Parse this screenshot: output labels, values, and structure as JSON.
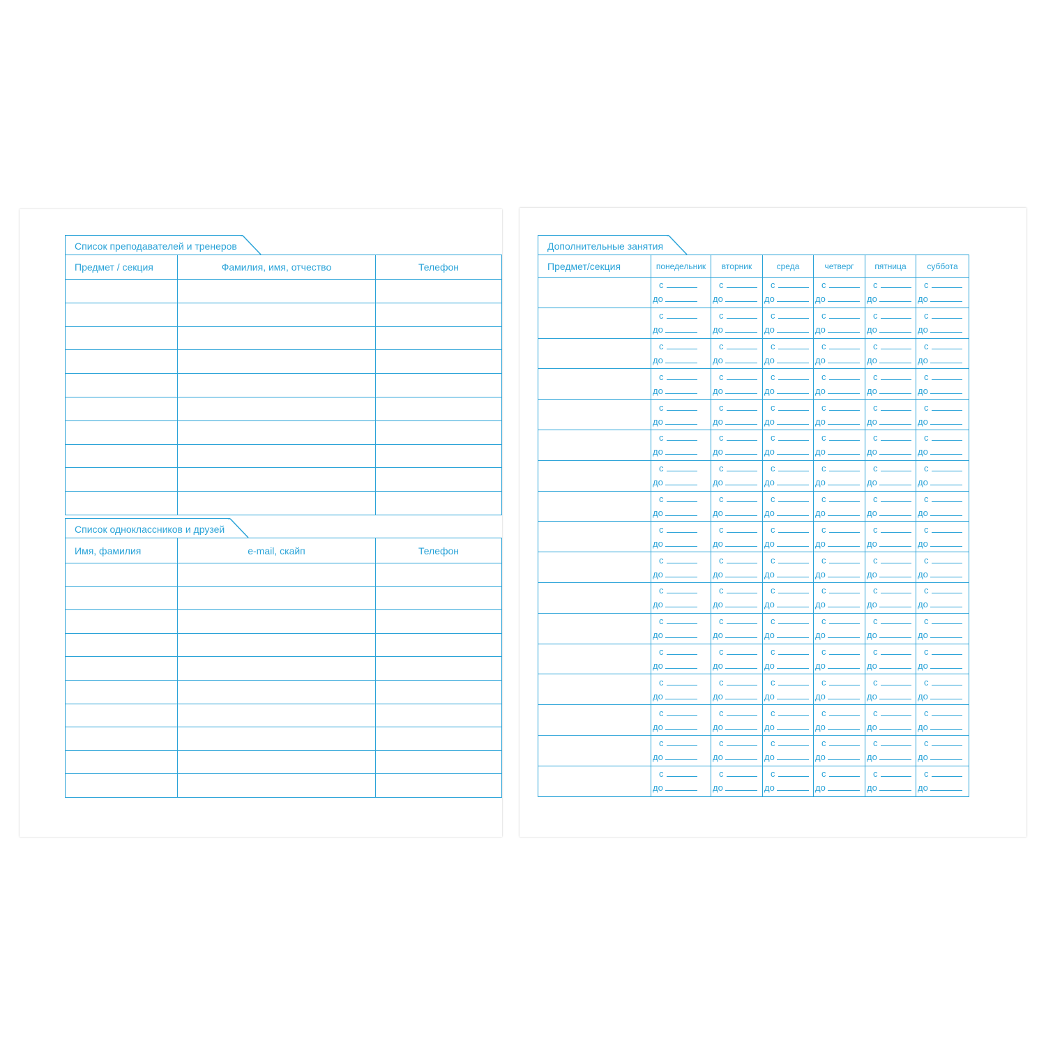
{
  "left_page": {
    "teachers": {
      "title": "Список преподавателей и тренеров",
      "columns": [
        "Предмет / секция",
        "Фамилия, имя, отчество",
        "Телефон"
      ]
    },
    "friends": {
      "title": "Список одноклассников и друзей",
      "columns": [
        "Имя, фамилия",
        "e-mail, скайп",
        "Телефон"
      ]
    }
  },
  "right_page": {
    "extra": {
      "title": "Дополнительные занятия",
      "columns": [
        "Предмет/секция",
        "понедельник",
        "вторник",
        "среда",
        "четверг",
        "пятница",
        "суббота"
      ],
      "from_label": "с",
      "to_label": "до"
    }
  },
  "colors": {
    "ink": "#2aa3d8"
  }
}
